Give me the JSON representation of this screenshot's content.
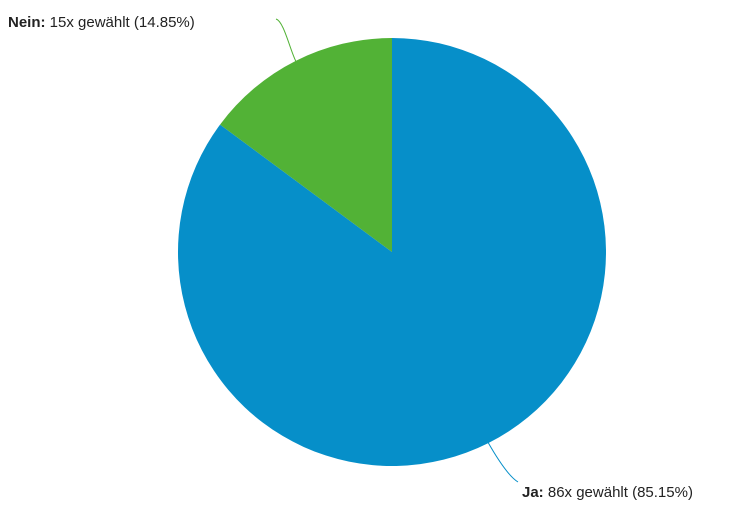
{
  "chart_data": {
    "type": "pie",
    "slices": [
      {
        "name": "Ja",
        "count": 86,
        "percent": 85.15,
        "label_prefix": "Ja:",
        "label_text": " 86x gewählt (85.15%)",
        "color": "#068fc9"
      },
      {
        "name": "Nein",
        "count": 15,
        "percent": 14.85,
        "label_prefix": "Nein:",
        "label_text": " 15x gewählt (14.85%)",
        "color": "#52b236"
      }
    ],
    "start_angle_deg": 0,
    "direction": "clockwise"
  }
}
